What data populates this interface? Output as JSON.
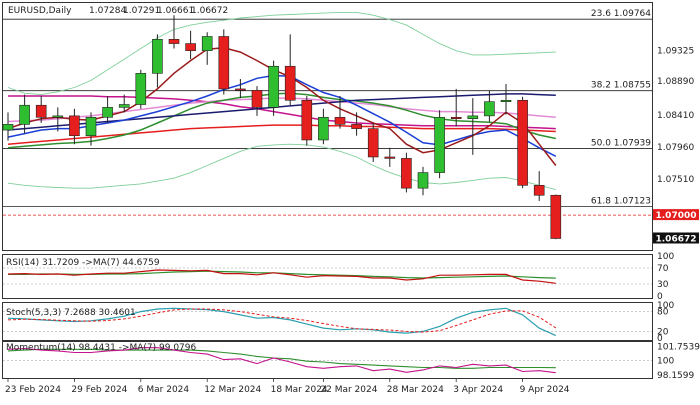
{
  "header": {
    "symbol": "EURUSD,Daily",
    "open": "1.07284",
    "high": "1.07291",
    "low": "1.06661",
    "close": "1.06672"
  },
  "colors": {
    "bull": "#2fbe2f",
    "bear": "#e51e1e",
    "bb": "#7fcf9a",
    "ma_dark_red": "#9b1b1b",
    "ma_blue": "#1b3fd6",
    "ma_navy": "#1a1a6e",
    "ma_green": "#2f8f2f",
    "ma_pink": "#e58ad6",
    "ma_magenta": "#c4128c",
    "ma_red": "#e51e1e",
    "fib_line": "#222222",
    "support_line": "#e51e1e",
    "rsi_line": "#c41010",
    "rsi_ma": "#2f8f2f",
    "stoch_k": "#2a9fb0",
    "stoch_d": "#e51e1e",
    "mom_line": "#c4128c",
    "mom_ma": "#2f8f2f"
  },
  "chart_data": [
    {
      "type": "candlestick",
      "title": "EURUSD,Daily",
      "ylim": [
        1.0655,
        1.0995
      ],
      "y_ticks": [
        1.09325,
        1.0889,
        1.0841,
        1.0796,
        1.0751,
        1.06672
      ],
      "x_ticks": [
        "23 Feb 2024",
        "29 Feb 2024",
        "6 Mar 2024",
        "12 Mar 2024",
        "18 Mar 2024",
        "22 Mar 2024",
        "28 Mar 2024",
        "3 Apr 2024",
        "9 Apr 2024"
      ],
      "x_tick_index": [
        0,
        4,
        8,
        12,
        16,
        19,
        23,
        27,
        31
      ],
      "candles": [
        {
          "o": 1.082,
          "h": 1.0845,
          "l": 1.0805,
          "c": 1.0828
        },
        {
          "o": 1.0828,
          "h": 1.087,
          "l": 1.0815,
          "c": 1.0855
        },
        {
          "o": 1.0855,
          "h": 1.0868,
          "l": 1.083,
          "c": 1.0838
        },
        {
          "o": 1.0838,
          "h": 1.0852,
          "l": 1.0818,
          "c": 1.084
        },
        {
          "o": 1.084,
          "h": 1.085,
          "l": 1.08,
          "c": 1.0812
        },
        {
          "o": 1.0812,
          "h": 1.0845,
          "l": 1.0798,
          "c": 1.0838
        },
        {
          "o": 1.0838,
          "h": 1.0868,
          "l": 1.083,
          "c": 1.0852
        },
        {
          "o": 1.0852,
          "h": 1.087,
          "l": 1.0845,
          "c": 1.0856
        },
        {
          "o": 1.0856,
          "h": 1.0905,
          "l": 1.085,
          "c": 1.09
        },
        {
          "o": 1.09,
          "h": 1.0955,
          "l": 1.088,
          "c": 1.0948
        },
        {
          "o": 1.0948,
          "h": 1.0982,
          "l": 1.0935,
          "c": 1.0942
        },
        {
          "o": 1.0942,
          "h": 1.096,
          "l": 1.092,
          "c": 1.0932
        },
        {
          "o": 1.0932,
          "h": 1.0958,
          "l": 1.0912,
          "c": 1.0952
        },
        {
          "o": 1.0952,
          "h": 1.0962,
          "l": 1.087,
          "c": 1.0878
        },
        {
          "o": 1.0878,
          "h": 1.0892,
          "l": 1.0865,
          "c": 1.0876
        },
        {
          "o": 1.0876,
          "h": 1.0882,
          "l": 1.084,
          "c": 1.0852
        },
        {
          "o": 1.0852,
          "h": 1.0918,
          "l": 1.084,
          "c": 1.091
        },
        {
          "o": 1.091,
          "h": 1.0955,
          "l": 1.0855,
          "c": 1.0862
        },
        {
          "o": 1.0862,
          "h": 1.0868,
          "l": 1.0798,
          "c": 1.0806
        },
        {
          "o": 1.0806,
          "h": 1.085,
          "l": 1.08,
          "c": 1.0838
        },
        {
          "o": 1.0838,
          "h": 1.0868,
          "l": 1.0822,
          "c": 1.0828
        },
        {
          "o": 1.0828,
          "h": 1.0845,
          "l": 1.0812,
          "c": 1.0822
        },
        {
          "o": 1.0822,
          "h": 1.083,
          "l": 1.0775,
          "c": 1.0782
        },
        {
          "o": 1.0782,
          "h": 1.0795,
          "l": 1.0768,
          "c": 1.078
        },
        {
          "o": 1.078,
          "h": 1.0788,
          "l": 1.0732,
          "c": 1.0738
        },
        {
          "o": 1.0738,
          "h": 1.0768,
          "l": 1.0728,
          "c": 1.076
        },
        {
          "o": 1.076,
          "h": 1.0848,
          "l": 1.0752,
          "c": 1.0838
        },
        {
          "o": 1.0838,
          "h": 1.0878,
          "l": 1.0825,
          "c": 1.0836
        },
        {
          "o": 1.0836,
          "h": 1.0865,
          "l": 1.0785,
          "c": 1.084
        },
        {
          "o": 1.084,
          "h": 1.0876,
          "l": 1.0832,
          "c": 1.086
        },
        {
          "o": 1.086,
          "h": 1.0885,
          "l": 1.0842,
          "c": 1.0862
        },
        {
          "o": 1.0862,
          "h": 1.0867,
          "l": 1.0738,
          "c": 1.0742
        },
        {
          "o": 1.0742,
          "h": 1.0762,
          "l": 1.072,
          "c": 1.0728
        },
        {
          "o": 1.0728,
          "h": 1.0729,
          "l": 1.0666,
          "c": 1.0667
        }
      ],
      "bollinger_upper": [
        1.088,
        1.0872,
        1.087,
        1.0874,
        1.088,
        1.089,
        1.0905,
        1.092,
        1.0935,
        1.095,
        1.0962,
        1.0968,
        1.0972,
        1.0975,
        1.0978,
        1.098,
        1.0982,
        1.0983,
        1.0984,
        1.0985,
        1.0986,
        1.0986,
        1.0982,
        1.0976,
        1.0968,
        1.0955,
        1.0942,
        1.0932,
        1.0926,
        1.0926,
        1.0927,
        1.0928,
        1.0929,
        1.093
      ],
      "bollinger_lower": [
        1.0745,
        1.0742,
        1.074,
        1.0739,
        1.0738,
        1.0738,
        1.074,
        1.0742,
        1.0744,
        1.0748,
        1.0752,
        1.076,
        1.077,
        1.078,
        1.079,
        1.0797,
        1.0799,
        1.08,
        1.0799,
        1.0796,
        1.079,
        1.0782,
        1.077,
        1.076,
        1.0752,
        1.0746,
        1.0744,
        1.0746,
        1.0749,
        1.0752,
        1.0753,
        1.0748,
        1.0742,
        1.0736
      ],
      "ma_dark_red": [
        1.0822,
        1.083,
        1.0836,
        1.0838,
        1.0835,
        1.0834,
        1.084,
        1.0846,
        1.086,
        1.0878,
        1.09,
        1.0918,
        1.0934,
        1.0936,
        1.093,
        1.0918,
        1.0905,
        1.0895,
        1.088,
        1.0862,
        1.085,
        1.084,
        1.083,
        1.0822,
        1.08,
        1.0788,
        1.0792,
        1.0802,
        1.0812,
        1.0826,
        1.0845,
        1.083,
        1.08,
        1.077
      ],
      "ma_blue": [
        1.081,
        1.0815,
        1.082,
        1.0822,
        1.0822,
        1.0826,
        1.083,
        1.0834,
        1.084,
        1.0846,
        1.0853,
        1.086,
        1.0868,
        1.0877,
        1.0884,
        1.0893,
        1.0897,
        1.0896,
        1.0884,
        1.0873,
        1.0866,
        1.0855,
        1.0843,
        1.0831,
        1.0817,
        1.0802,
        1.0799,
        1.0806,
        1.0813,
        1.0818,
        1.082,
        1.0808,
        1.0795,
        1.0783
      ],
      "ma_navy": [
        1.082,
        1.0822,
        1.0824,
        1.0826,
        1.0828,
        1.083,
        1.0832,
        1.0834,
        1.0836,
        1.0838,
        1.084,
        1.0842,
        1.0844,
        1.0846,
        1.0848,
        1.085,
        1.0852,
        1.0854,
        1.0856,
        1.0858,
        1.086,
        1.0862,
        1.0863,
        1.0864,
        1.0865,
        1.0866,
        1.0867,
        1.0868,
        1.0869,
        1.087,
        1.0871,
        1.0871,
        1.087,
        1.0869
      ],
      "ma_green": [
        1.0795,
        1.0797,
        1.0799,
        1.0801,
        1.0802,
        1.0804,
        1.0808,
        1.0813,
        1.082,
        1.083,
        1.084,
        1.085,
        1.0858,
        1.0862,
        1.0866,
        1.0868,
        1.0871,
        1.0872,
        1.087,
        1.0866,
        1.0863,
        1.0861,
        1.0858,
        1.0854,
        1.0848,
        1.0841,
        1.0836,
        1.0833,
        1.0832,
        1.0831,
        1.0829,
        1.082,
        1.0813,
        1.0808
      ],
      "ma_pink": [
        1.0832,
        1.0833,
        1.0834,
        1.0836,
        1.0838,
        1.084,
        1.0843,
        1.0846,
        1.0849,
        1.0852,
        1.0855,
        1.0858,
        1.086,
        1.0862,
        1.0863,
        1.0864,
        1.0865,
        1.0865,
        1.0864,
        1.0862,
        1.086,
        1.0858,
        1.0856,
        1.0853,
        1.085,
        1.0848,
        1.0846,
        1.0846,
        1.0845,
        1.0845,
        1.0844,
        1.0842,
        1.084,
        1.0838
      ],
      "ma_magenta": [
        1.0868,
        1.0868,
        1.0868,
        1.0868,
        1.0868,
        1.0868,
        1.0867,
        1.0867,
        1.0866,
        1.0865,
        1.0864,
        1.0862,
        1.086,
        1.0857,
        1.0853,
        1.085,
        1.0846,
        1.0842,
        1.0838,
        1.0834,
        1.0832,
        1.083,
        1.0829,
        1.0828,
        1.0827,
        1.0826,
        1.0826,
        1.0826,
        1.0826,
        1.0826,
        1.0825,
        1.0824,
        1.0823,
        1.0822
      ],
      "ma_red": [
        1.08,
        1.0802,
        1.0804,
        1.0806,
        1.0808,
        1.081,
        1.0812,
        1.0814,
        1.0816,
        1.0818,
        1.082,
        1.0822,
        1.0823,
        1.0824,
        1.0825,
        1.0826,
        1.0827,
        1.0827,
        1.0827,
        1.0826,
        1.0826,
        1.0825,
        1.0825,
        1.0824,
        1.0823,
        1.0822,
        1.0822,
        1.0822,
        1.0822,
        1.0822,
        1.0821,
        1.082,
        1.0819,
        1.0818
      ],
      "fib_levels": [
        {
          "label": "23.6 1.09764",
          "value": 1.09764
        },
        {
          "label": "38.2 1.08755",
          "value": 1.08755
        },
        {
          "label": "50.0 1.07939",
          "value": 1.07939
        },
        {
          "label": "61.8 1.07123",
          "value": 1.07123
        }
      ],
      "support_line": {
        "label": "1.07000",
        "value": 1.07
      },
      "last_price_label": "1.06672"
    },
    {
      "type": "line",
      "title": "RSI(14) 31.7209 ->MA(7) 44.6759",
      "ylim": [
        0,
        100
      ],
      "y_ticks": [
        "100",
        "70",
        "30",
        "0"
      ],
      "rsi": [
        55,
        56,
        54,
        55,
        52,
        55,
        57,
        57,
        61,
        65,
        64,
        63,
        64,
        56,
        56,
        53,
        58,
        53,
        47,
        51,
        50,
        49,
        45,
        45,
        40,
        43,
        52,
        52,
        53,
        54,
        54,
        40,
        37,
        31.7209
      ],
      "rsi_ma": [
        54,
        54,
        55,
        55,
        54,
        54,
        55,
        55,
        56,
        58,
        60,
        61,
        62,
        61,
        60,
        58,
        58,
        56,
        54,
        53,
        52,
        51,
        49,
        48,
        46,
        45,
        46,
        47,
        48,
        49,
        50,
        48,
        46,
        44.6759
      ]
    },
    {
      "type": "line",
      "title": "Stoch(5,3,3) 7.2688 30.4601",
      "ylim": [
        0,
        100
      ],
      "y_ticks": [
        "100",
        "80",
        "20",
        "0"
      ],
      "k": [
        60,
        58,
        55,
        52,
        50,
        52,
        58,
        66,
        80,
        88,
        90,
        88,
        86,
        80,
        70,
        60,
        62,
        55,
        42,
        30,
        25,
        28,
        25,
        18,
        15,
        20,
        35,
        60,
        78,
        85,
        90,
        70,
        30,
        7.2688
      ],
      "d": [
        55,
        57,
        56,
        54,
        52,
        51,
        53,
        58,
        66,
        76,
        85,
        88,
        88,
        85,
        80,
        72,
        64,
        60,
        53,
        44,
        35,
        28,
        26,
        24,
        20,
        18,
        22,
        38,
        55,
        72,
        82,
        82,
        63,
        30.4601
      ]
    },
    {
      "type": "line",
      "title": "Momentum(14) 98.4431 ->MA(7) 99.0796",
      "ylim": [
        97.9,
        102.2
      ],
      "y_ticks": [
        "101.7539",
        "100",
        "98.1599"
      ],
      "momentum": [
        101.4,
        101.5,
        101.3,
        101.2,
        101.0,
        101.0,
        101.2,
        101.3,
        101.6,
        101.6,
        101.3,
        101.0,
        100.8,
        100.1,
        100.2,
        99.6,
        100.3,
        99.8,
        99.2,
        99.0,
        99.2,
        99.3,
        98.7,
        98.9,
        98.5,
        98.8,
        99.3,
        99.1,
        99.5,
        99.3,
        99.4,
        98.6,
        98.7,
        98.4431
      ],
      "momentum_ma": [
        101.2,
        101.3,
        101.4,
        101.4,
        101.4,
        101.4,
        101.3,
        101.3,
        101.3,
        101.3,
        101.3,
        101.3,
        101.2,
        101.0,
        100.8,
        100.5,
        100.3,
        100.2,
        99.9,
        99.8,
        99.6,
        99.5,
        99.4,
        99.3,
        99.2,
        99.1,
        99.1,
        99.0,
        99.0,
        99.1,
        99.1,
        99.1,
        99.1,
        99.0796
      ]
    }
  ]
}
